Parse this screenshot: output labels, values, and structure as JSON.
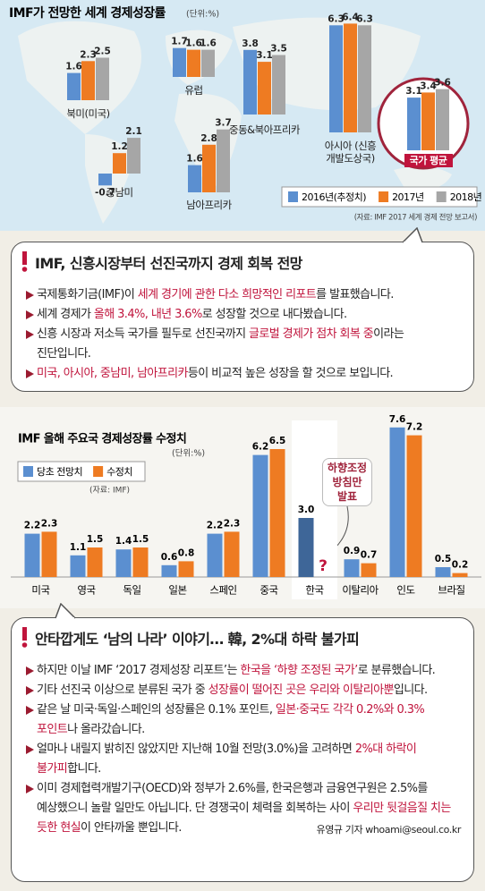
{
  "chart_data": [
    {
      "type": "bar",
      "title": "IMF가 전망한 세계 경제성장률",
      "unit": "(단위:%)",
      "categories": [
        "북미(미국)",
        "유럽",
        "중동&북아프리카",
        "아시아 (신흥 개발도상국)",
        "중남미",
        "남아프리카",
        "국가 평균"
      ],
      "series": [
        {
          "name": "2016년(추정치)",
          "color": "#5b8fd0",
          "values": [
            1.6,
            1.7,
            3.8,
            6.3,
            -0.7,
            1.6,
            3.1
          ]
        },
        {
          "name": "2017년",
          "color": "#ee7b22",
          "values": [
            2.3,
            1.6,
            3.1,
            6.4,
            1.2,
            2.8,
            3.4
          ]
        },
        {
          "name": "2018년",
          "color": "#a6a6a6",
          "values": [
            2.5,
            1.6,
            3.5,
            6.3,
            2.1,
            3.7,
            3.6
          ]
        }
      ],
      "source": "(자료: IMF 2017 세계 경제 전망 보고서)"
    },
    {
      "type": "bar",
      "title": "IMF 올해 주요국 경제성장률 수정치",
      "unit": "(단위:%)",
      "categories": [
        "미국",
        "영국",
        "독일",
        "일본",
        "스페인",
        "중국",
        "한국",
        "이탈리아",
        "인도",
        "브라질"
      ],
      "series": [
        {
          "name": "당초 전망치",
          "color": "#5b8fd0",
          "values": [
            2.2,
            1.1,
            1.4,
            0.6,
            2.2,
            6.2,
            3.0,
            0.9,
            7.6,
            0.5
          ]
        },
        {
          "name": "수정치",
          "color": "#ee7b22",
          "values": [
            2.3,
            1.5,
            1.5,
            0.8,
            2.3,
            6.5,
            null,
            0.7,
            7.2,
            0.2
          ]
        }
      ],
      "value_labels": [
        [
          "2.2",
          "1.1",
          "1.4",
          "0.6",
          "2.2",
          "6.2",
          "3.0",
          "0.9",
          "7.6",
          "0.5"
        ],
        [
          "2.3",
          "1.5",
          "1.5",
          "0.8",
          "2.3",
          "6.5",
          null,
          "0.7",
          "7.2",
          "0.2"
        ]
      ],
      "source": "(자료: IMF)",
      "annotations": [
        "하향조정 방침만 발표",
        "?"
      ]
    }
  ],
  "callouts": [
    {
      "title": "IMF, 신흥시장부터 선진국까지 경제 회복 전망",
      "bullets": [
        [
          {
            "text": "국제통화기금(IMF)이 "
          },
          {
            "text": "세계 경기에 관한 다소 희망적인 리포트",
            "em": true
          },
          {
            "text": "를 발표했습니다."
          }
        ],
        [
          {
            "text": "세계 경제가 "
          },
          {
            "text": "올해 3.4%, 내년 3.6%",
            "em": true
          },
          {
            "text": "로 성장할 것으로 내다봤습니다."
          }
        ],
        [
          {
            "text": "신흥 시장과 저소득 국가를 필두로 선진국까지 "
          },
          {
            "text": "글로벌 경제가 점차 회복 중",
            "em": true
          },
          {
            "text": "이라는 진단입니다."
          }
        ],
        [
          {
            "text": "미국, 아시아, 중남미, 남아프리카",
            "em": true
          },
          {
            "text": "등이 비교적 높은 성장을 할 것으로 보입니다."
          }
        ]
      ]
    },
    {
      "title": "안타깝게도 ‘남의 나라’ 이야기… 韓, 2%대 하락 불가피",
      "bullets": [
        [
          {
            "text": "하지만 이날 IMF ‘2017 경제성장 리포트’는 "
          },
          {
            "text": "한국을 ‘하향 조정된 국가’",
            "em": true
          },
          {
            "text": "로 분류했습니다."
          }
        ],
        [
          {
            "text": "기타 선진국 이상으로 분류된 국가 중 "
          },
          {
            "text": "성장률이 떨어진 곳은 우리와 이탈리아뿐",
            "em": true
          },
          {
            "text": "입니다."
          }
        ],
        [
          {
            "text": "같은 날 미국·독일·스페인의 성장률은 0.1% 포인트, "
          },
          {
            "text": "일본·중국도 각각 0.2%와 0.3% 포인트",
            "em": true
          },
          {
            "text": "나 올라갔습니다."
          }
        ],
        [
          {
            "text": "얼마나 내릴지 밝히진 않았지만 지난해 10월 전망(3.0%)을 고려하면 "
          },
          {
            "text": "2%대 하락이 불가피",
            "em": true
          },
          {
            "text": "합니다."
          }
        ],
        [
          {
            "text": "이미 경제협력개발기구(OECD)와 정부가 2.6%를, 한국은행과 금융연구원은 2.5%를 예상했으니 놀랄 일만도 아닙니다. 단 경쟁국이 체력을 회복하는 사이 "
          },
          {
            "text": "우리만 뒷걸음질 치는 듯한 현실",
            "em": true
          },
          {
            "text": "이 안타까울 뿐입니다."
          }
        ]
      ]
    }
  ],
  "byline": "유영규 기자 whoami@seoul.co.kr"
}
